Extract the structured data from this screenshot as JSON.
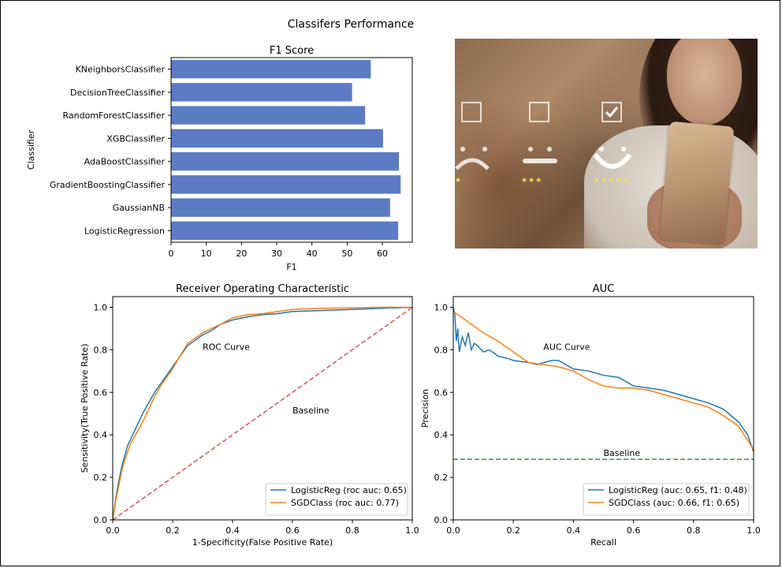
{
  "figure": {
    "suptitle": "Classifers Performance"
  },
  "chart_data": [
    {
      "type": "bar",
      "orientation": "horizontal",
      "title": "F1 Score",
      "xlabel": "F1",
      "ylabel": "Classifier",
      "xlim": [
        0,
        68.5
      ],
      "xticks": [
        0,
        10,
        20,
        30,
        40,
        50,
        60
      ],
      "color": "#5b7bc4",
      "categories": [
        "KNeighborsClassifier",
        "DecisionTreeClassifier",
        "RandomForestClassifier",
        "XGBClassifier",
        "AdaBoostClassifier",
        "GradientBoostingClassifier",
        "GaussianNB",
        "LogisticRegression"
      ],
      "values": [
        56.7,
        51.4,
        55.1,
        60.2,
        64.7,
        65.2,
        62.2,
        64.5
      ]
    },
    {
      "type": "line",
      "title": "Receiver Operating Characteristic",
      "xlabel": "1-Specificity(False Positive Rate)",
      "ylabel": "Sensitivity(True Positive Rate)",
      "xlim": [
        0,
        1
      ],
      "ylim": [
        0,
        1.05
      ],
      "xticks": [
        "0.0",
        "0.2",
        "0.4",
        "0.6",
        "0.8",
        "1.0"
      ],
      "yticks": [
        "0.0",
        "0.2",
        "0.4",
        "0.6",
        "0.8",
        "1.0"
      ],
      "annotations": [
        {
          "text": "ROC Curve",
          "x": 0.3,
          "y": 0.8
        },
        {
          "text": "Baseline",
          "x": 0.6,
          "y": 0.5
        }
      ],
      "legend_position": "lower right",
      "series": [
        {
          "name": "LogisticReg (roc auc: 0.65)",
          "color": "#1f77b4",
          "style": "solid",
          "x": [
            0,
            0.01,
            0.02,
            0.03,
            0.04,
            0.05,
            0.06,
            0.08,
            0.1,
            0.12,
            0.14,
            0.16,
            0.18,
            0.2,
            0.22,
            0.25,
            0.28,
            0.3,
            0.33,
            0.36,
            0.4,
            0.45,
            0.5,
            0.55,
            0.6,
            0.7,
            0.8,
            0.9,
            1.0
          ],
          "y": [
            0,
            0.1,
            0.18,
            0.25,
            0.3,
            0.35,
            0.38,
            0.44,
            0.5,
            0.55,
            0.6,
            0.64,
            0.68,
            0.72,
            0.76,
            0.82,
            0.85,
            0.87,
            0.89,
            0.92,
            0.94,
            0.955,
            0.965,
            0.97,
            0.98,
            0.985,
            0.99,
            0.995,
            1.0
          ]
        },
        {
          "name": "SGDClass (roc auc: 0.77)",
          "color": "#ff7f0e",
          "style": "solid",
          "x": [
            0,
            0.01,
            0.02,
            0.03,
            0.04,
            0.05,
            0.06,
            0.08,
            0.1,
            0.12,
            0.14,
            0.16,
            0.18,
            0.2,
            0.22,
            0.25,
            0.28,
            0.3,
            0.33,
            0.36,
            0.4,
            0.45,
            0.5,
            0.55,
            0.6,
            0.7,
            0.8,
            0.9,
            1.0
          ],
          "y": [
            0,
            0.09,
            0.16,
            0.23,
            0.28,
            0.32,
            0.36,
            0.41,
            0.46,
            0.52,
            0.58,
            0.63,
            0.67,
            0.71,
            0.76,
            0.83,
            0.86,
            0.88,
            0.9,
            0.92,
            0.95,
            0.965,
            0.97,
            0.98,
            0.99,
            0.995,
            0.997,
            1.0,
            1.0
          ]
        },
        {
          "name": "baseline",
          "color": "#d9534f",
          "style": "dashed",
          "x": [
            0,
            1
          ],
          "y": [
            0,
            1
          ]
        }
      ]
    },
    {
      "type": "line",
      "title": "AUC",
      "xlabel": "Recall",
      "ylabel": "Precision",
      "xlim": [
        0,
        1
      ],
      "ylim": [
        0,
        1.05
      ],
      "xticks": [
        "0.0",
        "0.2",
        "0.4",
        "0.6",
        "0.8",
        "1.0"
      ],
      "yticks": [
        "0.0",
        "0.2",
        "0.4",
        "0.6",
        "0.8",
        "1.0"
      ],
      "annotations": [
        {
          "text": "AUC Curve",
          "x": 0.3,
          "y": 0.8
        },
        {
          "text": "Baseline",
          "x": 0.5,
          "y": 0.3
        }
      ],
      "legend_position": "lower right",
      "series": [
        {
          "name": "LogisticReg (auc: 0.65, f1: 0.48)",
          "color": "#1f77b4",
          "style": "solid",
          "x": [
            0,
            0.005,
            0.01,
            0.015,
            0.02,
            0.03,
            0.04,
            0.05,
            0.06,
            0.07,
            0.08,
            0.1,
            0.12,
            0.15,
            0.18,
            0.2,
            0.25,
            0.28,
            0.3,
            0.33,
            0.35,
            0.4,
            0.45,
            0.5,
            0.55,
            0.6,
            0.65,
            0.7,
            0.75,
            0.8,
            0.85,
            0.9,
            0.95,
            0.98,
            1.0
          ],
          "y": [
            1.0,
            0.97,
            0.84,
            0.9,
            0.79,
            0.86,
            0.82,
            0.88,
            0.8,
            0.83,
            0.82,
            0.79,
            0.8,
            0.77,
            0.76,
            0.75,
            0.74,
            0.73,
            0.74,
            0.75,
            0.75,
            0.71,
            0.7,
            0.68,
            0.67,
            0.63,
            0.62,
            0.61,
            0.59,
            0.57,
            0.55,
            0.52,
            0.46,
            0.4,
            0.32
          ]
        },
        {
          "name": "SGDClass (auc: 0.66, f1: 0.65)",
          "color": "#ff7f0e",
          "style": "solid",
          "x": [
            0,
            0.05,
            0.1,
            0.15,
            0.2,
            0.25,
            0.3,
            0.35,
            0.4,
            0.45,
            0.5,
            0.55,
            0.6,
            0.65,
            0.7,
            0.75,
            0.8,
            0.85,
            0.9,
            0.95,
            1.0
          ],
          "y": [
            0.98,
            0.93,
            0.88,
            0.84,
            0.79,
            0.74,
            0.73,
            0.72,
            0.7,
            0.66,
            0.63,
            0.62,
            0.62,
            0.61,
            0.59,
            0.57,
            0.55,
            0.53,
            0.49,
            0.44,
            0.33
          ]
        },
        {
          "name": "baseline",
          "color": "#2ca02c",
          "style": "dashed",
          "x": [
            0,
            1
          ],
          "y": [
            0.285,
            0.285
          ]
        }
      ]
    }
  ]
}
